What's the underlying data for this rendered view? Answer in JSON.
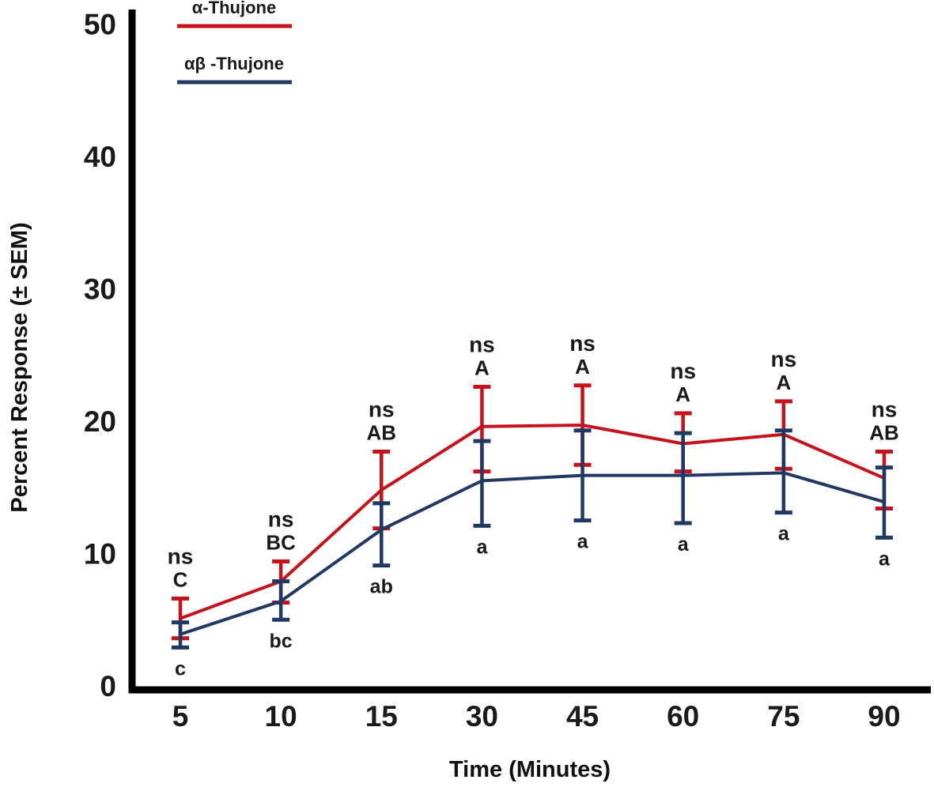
{
  "figure": {
    "background": "#ffffff"
  },
  "chart_data": {
    "type": "line",
    "title": "",
    "xlabel": "Time (Minutes)",
    "ylabel": "Percent Response (± SEM)",
    "categories": [
      "5",
      "10",
      "15",
      "30",
      "45",
      "60",
      "75",
      "90"
    ],
    "yticks": [
      "0",
      "10",
      "20",
      "30",
      "40",
      "50"
    ],
    "ylim": [
      0,
      50
    ],
    "grid": false,
    "legend_position": "top-left",
    "error_bars": "± SEM",
    "colors": {
      "axis": "#000000",
      "text": "#1a1a1a",
      "background": "#ffffff"
    },
    "series": [
      {
        "name": "α-Thujone",
        "color": "#C5121B",
        "values": [
          5.1,
          7.9,
          14.8,
          19.6,
          19.7,
          18.3,
          19.0,
          15.7
        ],
        "err_hi": [
          6.6,
          9.4,
          17.7,
          22.6,
          22.7,
          20.6,
          21.5,
          17.7
        ],
        "err_lo": [
          3.6,
          6.3,
          11.9,
          16.2,
          16.7,
          16.2,
          16.4,
          13.4
        ]
      },
      {
        "name": "αβ -Thujone",
        "color": "#1F3864",
        "values": [
          3.9,
          6.4,
          11.8,
          15.5,
          15.9,
          15.9,
          16.1,
          13.9
        ],
        "err_hi": [
          4.8,
          7.9,
          13.8,
          18.5,
          19.3,
          19.1,
          19.3,
          16.5
        ],
        "err_lo": [
          2.9,
          5.0,
          9.1,
          12.1,
          12.5,
          12.3,
          13.1,
          11.2
        ]
      }
    ],
    "annotations": [
      {
        "x": "5",
        "above": [
          "ns",
          "C"
        ],
        "below": "c"
      },
      {
        "x": "10",
        "above": [
          "ns",
          "BC"
        ],
        "below": "bc"
      },
      {
        "x": "15",
        "above": [
          "ns",
          "AB"
        ],
        "below": "ab"
      },
      {
        "x": "30",
        "above": [
          "ns",
          "A"
        ],
        "below": "a"
      },
      {
        "x": "45",
        "above": [
          "ns",
          "A"
        ],
        "below": "a"
      },
      {
        "x": "60",
        "above": [
          "ns",
          "A"
        ],
        "below": "a"
      },
      {
        "x": "75",
        "above": [
          "ns",
          "A"
        ],
        "below": "a"
      },
      {
        "x": "90",
        "above": [
          "ns",
          "AB"
        ],
        "below": "a"
      }
    ]
  }
}
